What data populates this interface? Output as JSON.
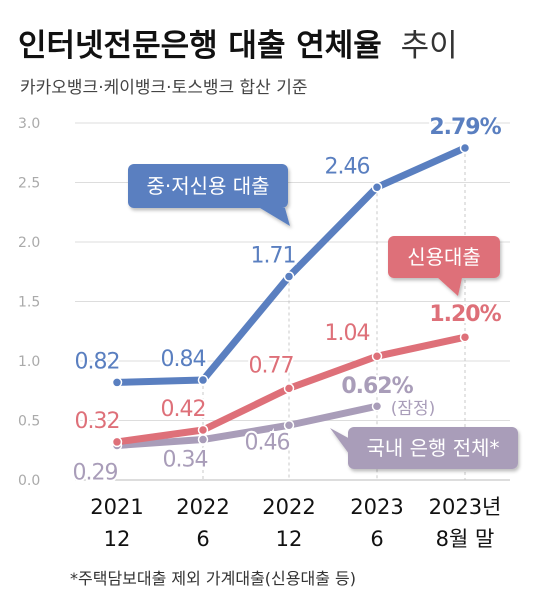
{
  "header": {
    "title_bold": "인터넷전문은행 대출 연체율",
    "title_light": "추이",
    "subtitle": "카카오뱅크·케이뱅크·토스뱅크 합산 기준"
  },
  "footnote": "*주택담보대출 제외 가계대출(신용대출 등)",
  "colors": {
    "blue": "#5a7fc0",
    "red": "#de7079",
    "purple": "#a99db9",
    "grid": "#dddddd",
    "axis_text": "#aaaaaa",
    "text": "#111111"
  },
  "chart_data": {
    "type": "line",
    "categories": [
      [
        "2021",
        "12"
      ],
      [
        "2022",
        "6"
      ],
      [
        "2022",
        "12"
      ],
      [
        "2023",
        "6"
      ],
      [
        "2023년",
        "8월 말"
      ]
    ],
    "ylim": [
      0,
      3.0
    ],
    "yticks": [
      "0.0",
      "0.5",
      "1.0",
      "1.5",
      "2.0",
      "2.5",
      "3.0"
    ],
    "grid": "horizontal",
    "series": [
      {
        "name": "중·저신용 대출",
        "color": "#5a7fc0",
        "values": [
          0.82,
          0.84,
          1.71,
          2.46,
          2.79
        ],
        "labels": [
          "0.82",
          "0.84",
          "1.71",
          "2.46",
          "2.79%"
        ]
      },
      {
        "name": "신용대출",
        "color": "#de7079",
        "values": [
          0.32,
          0.42,
          0.77,
          1.04,
          1.2
        ],
        "labels": [
          "0.32",
          "0.42",
          "0.77",
          "1.04",
          "1.20%"
        ]
      },
      {
        "name": "국내 은행 전체*",
        "color": "#a99db9",
        "values": [
          0.29,
          0.34,
          0.46,
          0.62,
          null
        ],
        "labels": [
          "0.29",
          "0.34",
          "0.46",
          "0.62%",
          null
        ],
        "annotation": "(잠정)"
      }
    ]
  }
}
